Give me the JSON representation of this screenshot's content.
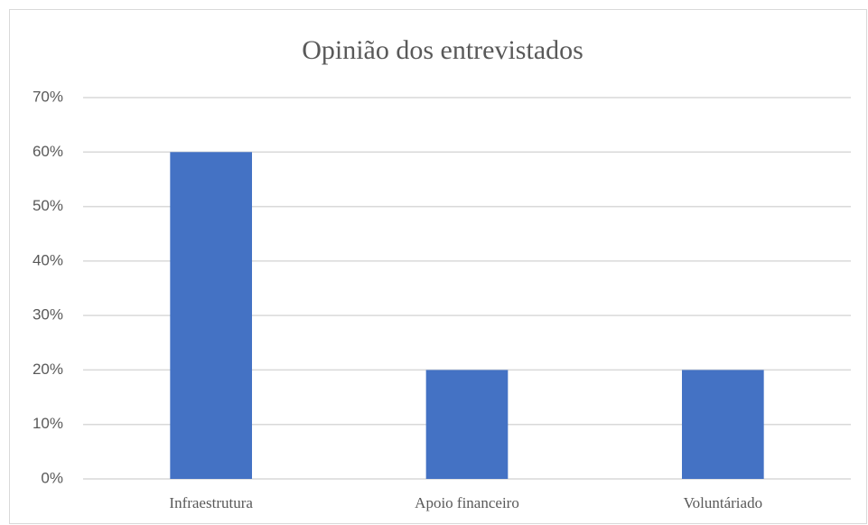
{
  "chart_data": {
    "type": "bar",
    "title": "Opinião dos entrevistados",
    "categories": [
      "Infraestrutura",
      "Apoio financeiro",
      "Voluntáriado"
    ],
    "values": [
      60,
      20,
      20
    ],
    "color": "#4472c4",
    "ylim": [
      0,
      70
    ],
    "yticks": [
      {
        "value": 0,
        "label": "0%"
      },
      {
        "value": 10,
        "label": "10%"
      },
      {
        "value": 20,
        "label": "20%"
      },
      {
        "value": 30,
        "label": "30%"
      },
      {
        "value": 40,
        "label": "40%"
      },
      {
        "value": 50,
        "label": "50%"
      },
      {
        "value": 60,
        "label": "60%"
      },
      {
        "value": 70,
        "label": "70%"
      }
    ],
    "grid": true
  }
}
